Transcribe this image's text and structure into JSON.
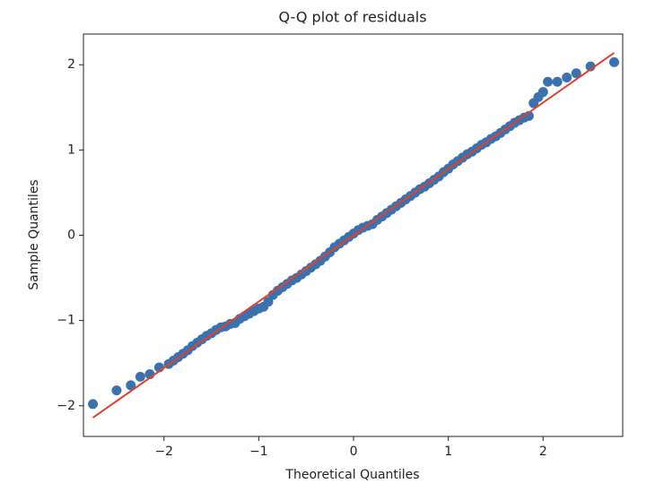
{
  "chart_data": {
    "type": "scatter",
    "title": "Q-Q plot of residuals",
    "xlabel": "Theoretical Quantiles",
    "ylabel": "Sample Quantiles",
    "xlim": [
      -2.85,
      2.84
    ],
    "ylim": [
      -2.36,
      2.36
    ],
    "xticks": [
      {
        "value": -2,
        "label": "−2"
      },
      {
        "value": -1,
        "label": "−1"
      },
      0,
      1,
      2
    ],
    "yticks": [
      {
        "value": -2,
        "label": "−2"
      },
      {
        "value": -1,
        "label": "−1"
      },
      0,
      1,
      2
    ],
    "series": [
      {
        "mode": "points",
        "color": "#3b72ae",
        "x": [
          -2.75,
          -2.5,
          -2.35,
          -2.25,
          -2.15,
          -2.05,
          -1.95,
          -1.9,
          -1.85,
          -1.8,
          -1.75,
          -1.7,
          -1.65,
          -1.6,
          -1.55,
          -1.5,
          -1.45,
          -1.4,
          -1.35,
          -1.3,
          -1.25,
          -1.2,
          -1.15,
          -1.1,
          -1.05,
          -1.0,
          -0.95,
          -0.9,
          -0.85,
          -0.8,
          -0.75,
          -0.7,
          -0.65,
          -0.6,
          -0.55,
          -0.5,
          -0.45,
          -0.4,
          -0.35,
          -0.3,
          -0.25,
          -0.2,
          -0.15,
          -0.1,
          -0.05,
          0.0,
          0.05,
          0.1,
          0.15,
          0.2,
          0.25,
          0.3,
          0.35,
          0.4,
          0.45,
          0.5,
          0.55,
          0.6,
          0.65,
          0.7,
          0.75,
          0.8,
          0.85,
          0.9,
          0.95,
          1.0,
          1.05,
          1.1,
          1.15,
          1.2,
          1.25,
          1.3,
          1.35,
          1.4,
          1.45,
          1.5,
          1.55,
          1.6,
          1.65,
          1.7,
          1.75,
          1.8,
          1.85,
          1.9,
          1.95,
          2.0,
          2.05,
          2.15,
          2.25,
          2.35,
          2.5,
          2.75
        ],
        "values": [
          -1.98,
          -1.82,
          -1.76,
          -1.66,
          -1.63,
          -1.55,
          -1.51,
          -1.47,
          -1.43,
          -1.39,
          -1.35,
          -1.3,
          -1.26,
          -1.22,
          -1.18,
          -1.15,
          -1.11,
          -1.08,
          -1.07,
          -1.04,
          -1.03,
          -0.98,
          -0.95,
          -0.92,
          -0.89,
          -0.86,
          -0.84,
          -0.78,
          -0.7,
          -0.65,
          -0.61,
          -0.57,
          -0.53,
          -0.5,
          -0.46,
          -0.42,
          -0.38,
          -0.34,
          -0.3,
          -0.25,
          -0.2,
          -0.14,
          -0.1,
          -0.06,
          -0.02,
          0.02,
          0.06,
          0.09,
          0.11,
          0.13,
          0.18,
          0.22,
          0.26,
          0.3,
          0.34,
          0.38,
          0.42,
          0.46,
          0.5,
          0.54,
          0.57,
          0.61,
          0.65,
          0.69,
          0.74,
          0.78,
          0.83,
          0.87,
          0.91,
          0.95,
          0.98,
          1.02,
          1.06,
          1.09,
          1.13,
          1.16,
          1.2,
          1.24,
          1.28,
          1.32,
          1.35,
          1.38,
          1.4,
          1.55,
          1.62,
          1.68,
          1.8,
          1.8,
          1.85,
          1.9,
          1.98,
          2.03
        ]
      },
      {
        "mode": "line",
        "color": "#e0412f",
        "x": [
          -2.75,
          2.75
        ],
        "values": [
          -2.14,
          2.14
        ]
      }
    ]
  }
}
